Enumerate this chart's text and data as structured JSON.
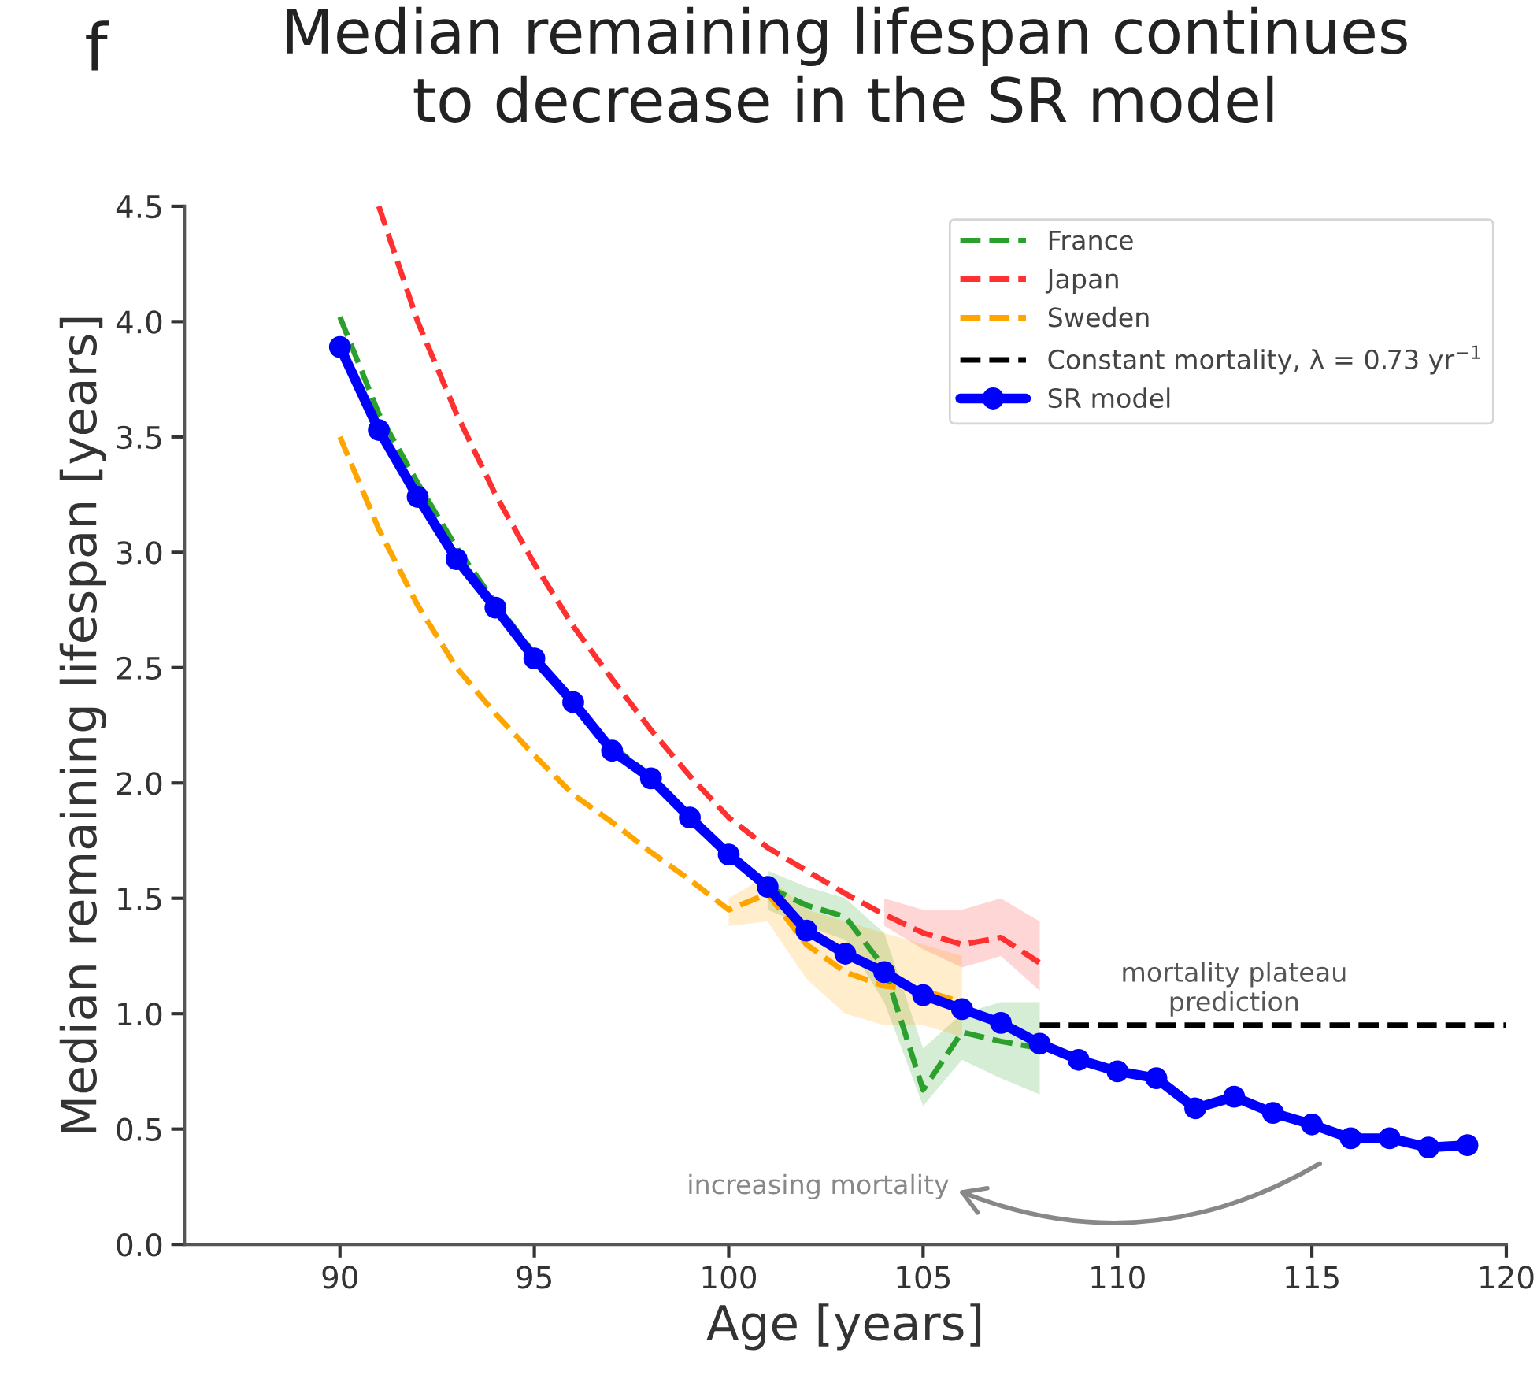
{
  "chart_data": {
    "type": "line",
    "title": "Median remaining lifespan continues\nto decrease in the SR model",
    "xlabel": "Age [years]",
    "ylabel": "Median remaining lifespan [years]",
    "xlim": [
      86,
      120
    ],
    "xticks": [
      90,
      95,
      100,
      105,
      110,
      115,
      120
    ],
    "ylim": [
      0,
      4.5
    ],
    "yticks": [
      {
        "value": 0,
        "label": "0.0"
      },
      {
        "value": 0.5,
        "label": "0.5"
      },
      {
        "value": 1,
        "label": "1.0"
      },
      {
        "value": 1.5,
        "label": "1.5"
      },
      {
        "value": 2,
        "label": "2.0"
      },
      {
        "value": 2.5,
        "label": "2.5"
      },
      {
        "value": 3,
        "label": "3.0"
      },
      {
        "value": 3.5,
        "label": "3.5"
      },
      {
        "value": 4,
        "label": "4.0"
      },
      {
        "value": 4.5,
        "label": "4.5"
      }
    ],
    "grid": false,
    "legend": "top right",
    "series": [
      {
        "name": "France",
        "color": "#2ca02c",
        "line_style": "dashed",
        "marker": "none",
        "x": [
          90,
          91,
          92,
          93,
          94,
          95,
          96,
          97,
          98,
          99,
          100,
          101,
          102,
          103,
          104,
          105,
          106,
          107,
          108
        ],
        "values": [
          4.02,
          3.6,
          3.3,
          3.02,
          2.78,
          2.56,
          null,
          2.16,
          2.03,
          null,
          null,
          1.55,
          1.47,
          1.42,
          1.2,
          0.67,
          0.92,
          0.88,
          0.85
        ],
        "lower": [
          null,
          null,
          null,
          null,
          null,
          null,
          null,
          null,
          null,
          null,
          null,
          1.45,
          1.38,
          1.32,
          1.05,
          0.6,
          0.8,
          0.72,
          0.65
        ],
        "upper": [
          null,
          null,
          null,
          null,
          null,
          null,
          null,
          null,
          null,
          null,
          null,
          1.62,
          1.55,
          1.5,
          1.35,
          0.85,
          1.0,
          1.05,
          1.05
        ]
      },
      {
        "name": "Japan",
        "color": "#ff3030",
        "line_style": "dashed",
        "marker": "none",
        "x": [
          91,
          92,
          93,
          94,
          95,
          96,
          97,
          98,
          99,
          100,
          101,
          102,
          103,
          104,
          105,
          106,
          107,
          108
        ],
        "values": [
          4.5,
          4.0,
          3.6,
          3.25,
          2.95,
          2.68,
          2.45,
          2.23,
          2.03,
          1.85,
          1.72,
          1.62,
          1.52,
          1.43,
          1.35,
          1.3,
          1.33,
          1.22
        ],
        "lower": [
          null,
          null,
          null,
          null,
          null,
          null,
          null,
          null,
          null,
          null,
          null,
          null,
          null,
          1.38,
          1.28,
          1.2,
          1.25,
          1.1
        ],
        "upper": [
          null,
          null,
          null,
          null,
          null,
          null,
          null,
          null,
          null,
          null,
          null,
          null,
          null,
          1.5,
          1.45,
          1.45,
          1.5,
          1.4
        ]
      },
      {
        "name": "Sweden",
        "color": "#ffa500",
        "line_style": "dashed",
        "marker": "none",
        "x": [
          90,
          91,
          92,
          93,
          94,
          95,
          96,
          97,
          98,
          99,
          100,
          101,
          102,
          103,
          104,
          105,
          106
        ],
        "values": [
          3.5,
          3.1,
          2.77,
          2.5,
          2.3,
          2.12,
          1.95,
          1.83,
          1.7,
          1.58,
          1.45,
          1.52,
          1.3,
          1.18,
          1.12,
          1.1,
          1.05
        ],
        "lower": [
          null,
          null,
          null,
          null,
          null,
          null,
          null,
          null,
          null,
          null,
          1.38,
          1.4,
          1.15,
          1.0,
          0.95,
          0.95,
          0.9
        ],
        "upper": [
          null,
          null,
          null,
          null,
          null,
          null,
          null,
          null,
          null,
          null,
          1.5,
          1.6,
          1.45,
          1.4,
          1.35,
          1.3,
          1.25
        ]
      },
      {
        "name": "Constant mortality, λ = 0.73 yr$^{−1}$",
        "color": "#000000",
        "line_style": "dashed",
        "marker": "none",
        "x": [
          108,
          120
        ],
        "values": [
          0.95,
          0.95
        ]
      },
      {
        "name": "SR model",
        "color": "#0000ff",
        "line_style": "solid",
        "marker": "circle",
        "x": [
          90,
          91,
          92,
          93,
          94,
          95,
          96,
          97,
          98,
          99,
          100,
          101,
          102,
          103,
          104,
          105,
          106,
          107,
          108,
          109,
          110,
          111,
          112,
          113,
          114,
          115,
          116,
          117,
          118,
          119
        ],
        "values": [
          3.89,
          3.53,
          3.24,
          2.97,
          2.76,
          2.54,
          2.35,
          2.14,
          2.02,
          1.85,
          1.69,
          1.55,
          1.36,
          1.26,
          1.18,
          1.08,
          1.02,
          0.96,
          0.87,
          0.8,
          0.75,
          0.72,
          0.59,
          0.64,
          0.57,
          0.52,
          0.46,
          0.46,
          0.42,
          0.43
        ]
      }
    ],
    "annotations": [
      "f",
      {
        "text": "mortality plateau\nprediction",
        "x": 113,
        "y": 0.95
      },
      "increasing mortality"
    ]
  }
}
